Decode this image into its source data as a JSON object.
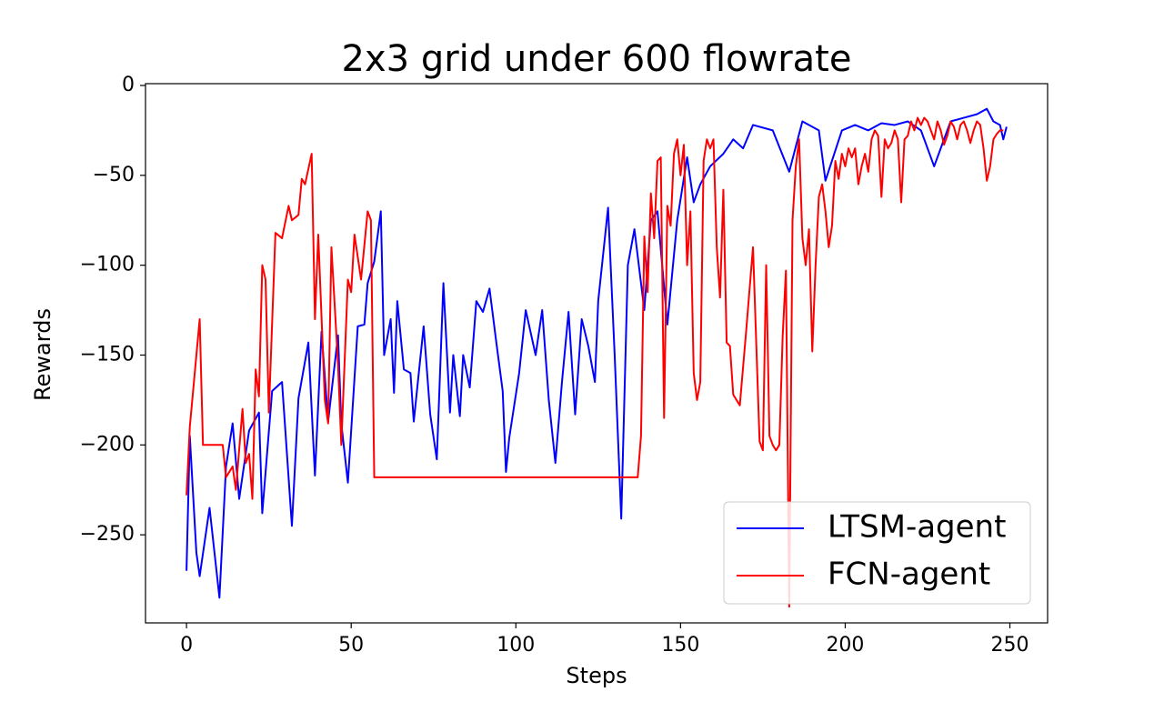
{
  "chart_data": {
    "type": "line",
    "title": "2x3 grid under 600 flowrate",
    "x_label": "Steps",
    "y_label": "Rewards",
    "xlim": [
      -12.45,
      261.45
    ],
    "ylim": [
      -299,
      1
    ],
    "xticks": [
      0,
      50,
      100,
      150,
      200,
      250
    ],
    "yticks": [
      0,
      {
        "value": -50,
        "label": "−50"
      },
      {
        "value": -100,
        "label": "−100"
      },
      {
        "value": -150,
        "label": "−150"
      },
      {
        "value": -200,
        "label": "−200"
      },
      {
        "value": -250,
        "label": "−250"
      }
    ],
    "legend": "lower right",
    "grid": false,
    "series": [
      {
        "name": "LTSM-agent",
        "color": "#0000ff",
        "x": [
          0,
          1,
          3,
          4,
          7,
          10,
          12,
          14,
          16,
          19,
          22,
          23,
          26,
          29,
          32,
          34,
          37,
          39,
          41,
          43,
          46,
          47,
          49,
          52,
          54,
          55,
          57,
          59,
          60,
          62,
          63,
          64,
          66,
          68,
          69,
          72,
          74,
          76,
          78,
          80,
          81,
          83,
          84,
          86,
          88,
          90,
          92,
          94,
          96,
          97,
          98,
          101,
          103,
          106,
          108,
          110,
          112,
          114,
          116,
          118,
          120,
          122,
          124,
          125,
          128,
          130,
          132,
          134,
          136,
          139,
          141,
          143,
          146,
          149,
          152,
          154,
          156,
          159,
          163,
          166,
          169,
          172,
          178,
          183,
          187,
          192,
          194,
          199,
          203,
          207,
          211,
          215,
          219,
          223,
          227,
          232,
          236,
          240,
          243,
          245,
          247,
          248,
          249
        ],
        "values": [
          -270,
          -195,
          -260,
          -273,
          -235,
          -285,
          -212,
          -188,
          -230,
          -192,
          -182,
          -238,
          -170,
          -165,
          -245,
          -174,
          -143,
          -217,
          -137,
          -187,
          -139,
          -188,
          -221,
          -134,
          -133,
          -110,
          -98,
          -70,
          -150,
          -130,
          -171,
          -120,
          -158,
          -160,
          -187,
          -134,
          -183,
          -208,
          -110,
          -182,
          -150,
          -184,
          -150,
          -168,
          -120,
          -126,
          -113,
          -142,
          -170,
          -215,
          -196,
          -160,
          -125,
          -150,
          -125,
          -175,
          -210,
          -165,
          -126,
          -183,
          -130,
          -145,
          -165,
          -120,
          -68,
          -150,
          -241,
          -100,
          -80,
          -125,
          -75,
          -70,
          -133,
          -75,
          -40,
          -65,
          -55,
          -45,
          -38,
          -30,
          -35,
          -22,
          -25,
          -48,
          -20,
          -25,
          -53,
          -25,
          -22,
          -25,
          -21,
          -22,
          -20,
          -25,
          -45,
          -20,
          -18,
          -16,
          -13,
          -20,
          -22,
          -30,
          -23
        ]
      },
      {
        "name": "FCN-agent",
        "color": "#ff0000",
        "x": [
          0,
          1,
          3,
          4,
          5,
          11,
          12,
          14,
          15,
          17,
          18,
          19,
          20,
          21,
          22,
          23,
          24,
          25,
          27,
          29,
          31,
          32,
          34,
          35,
          36,
          38,
          39,
          40,
          42,
          43,
          44,
          46,
          47,
          49,
          50,
          51,
          53,
          55,
          56,
          57,
          137,
          138,
          139,
          140,
          141,
          142,
          143,
          144,
          145,
          146,
          147,
          148,
          149,
          150,
          151,
          152,
          153,
          154,
          155,
          156,
          157,
          158,
          159,
          160,
          161,
          162,
          163,
          164,
          165,
          166,
          167,
          168,
          170,
          172,
          174,
          175,
          176,
          177,
          178,
          179,
          180,
          181,
          182,
          183,
          184,
          185,
          186,
          187,
          188,
          189,
          190,
          191,
          192,
          193,
          194,
          195,
          196,
          197,
          198,
          199,
          200,
          201,
          202,
          203,
          204,
          205,
          206,
          207,
          208,
          209,
          210,
          211,
          212,
          213,
          214,
          215,
          216,
          217,
          218,
          219,
          220,
          221,
          222,
          223,
          224,
          225,
          226,
          227,
          228,
          229,
          230,
          231,
          232,
          233,
          234,
          235,
          236,
          237,
          238,
          239,
          240,
          241,
          242,
          243,
          244,
          245,
          246,
          247,
          248
        ],
        "values": [
          -228,
          -190,
          -150,
          -130,
          -200,
          -200,
          -218,
          -212,
          -225,
          -180,
          -210,
          -205,
          -230,
          -158,
          -173,
          -100,
          -108,
          -182,
          -82,
          -85,
          -67,
          -75,
          -72,
          -52,
          -55,
          -38,
          -130,
          -83,
          -175,
          -188,
          -90,
          -155,
          -200,
          -108,
          -115,
          -83,
          -108,
          -70,
          -75,
          -218,
          -218,
          -195,
          -84,
          -115,
          -60,
          -85,
          -42,
          -40,
          -185,
          -67,
          -78,
          -38,
          -30,
          -50,
          -33,
          -100,
          -70,
          -160,
          -175,
          -165,
          -42,
          -30,
          -35,
          -30,
          -90,
          -118,
          -58,
          -143,
          -145,
          -172,
          -175,
          -178,
          -135,
          -90,
          -198,
          -203,
          -100,
          -195,
          -200,
          -203,
          -200,
          -140,
          -103,
          -290,
          -75,
          -45,
          -30,
          -85,
          -100,
          -80,
          -148,
          -100,
          -62,
          -55,
          -70,
          -90,
          -78,
          -42,
          -52,
          -38,
          -45,
          -35,
          -40,
          -35,
          -55,
          -45,
          -38,
          -48,
          -30,
          -25,
          -28,
          -62,
          -30,
          -35,
          -32,
          -25,
          -30,
          -65,
          -30,
          -28,
          -20,
          -25,
          -18,
          -22,
          -18,
          -20,
          -25,
          -30,
          -20,
          -25,
          -33,
          -28,
          -20,
          -23,
          -30,
          -22,
          -20,
          -25,
          -32,
          -25,
          -20,
          -22,
          -35,
          -53,
          -45,
          -30,
          -27,
          -25,
          -25
        ]
      }
    ]
  }
}
